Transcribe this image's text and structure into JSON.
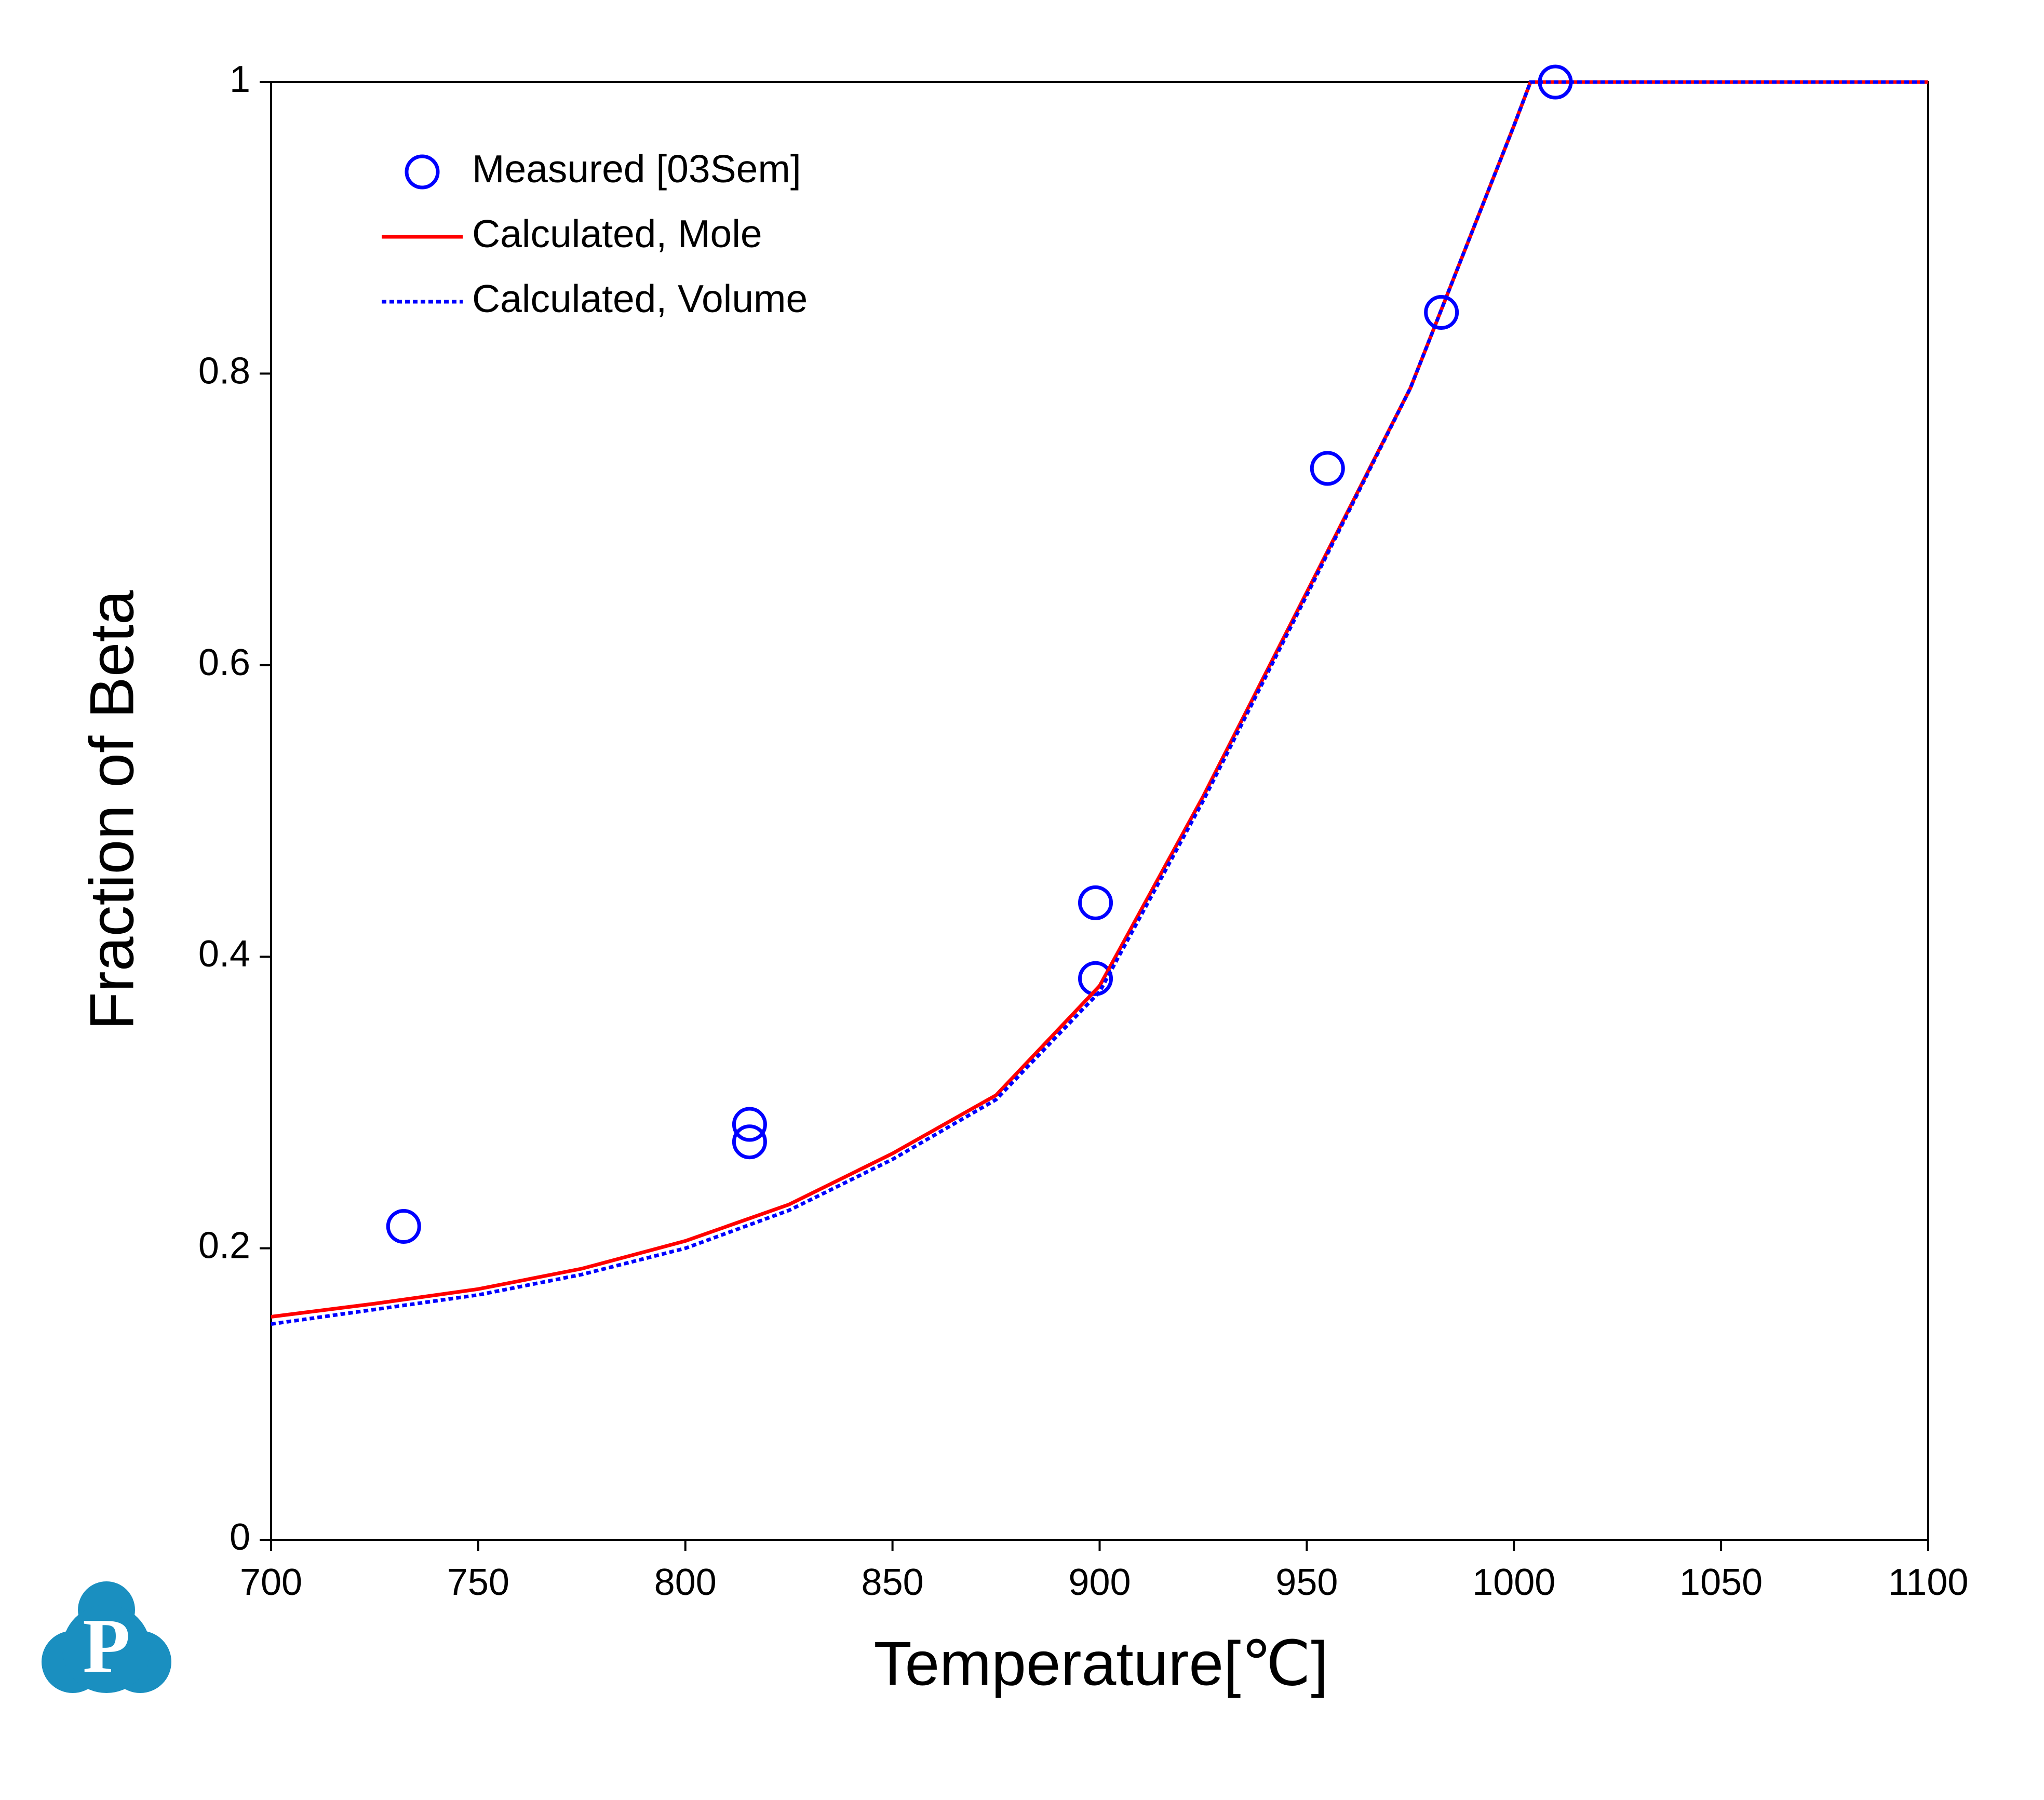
{
  "chart_data": {
    "type": "line",
    "xlabel": "Temperature[℃]",
    "ylabel": "Fraction of Beta",
    "xlim": [
      700,
      1100
    ],
    "xticks": [
      700,
      750,
      800,
      850,
      900,
      950,
      1000,
      1050,
      1100
    ],
    "ylim": [
      0,
      1
    ],
    "yticks": [
      0,
      0.2,
      0.4,
      0.6,
      0.8,
      1
    ],
    "legend": "upper-left",
    "series": [
      {
        "name": "Measured [03Sem]",
        "type": "scatter",
        "color": "#0000ff",
        "x": [
          732,
          815.5,
          815.5,
          899,
          899,
          955,
          982.5,
          1010
        ],
        "values": [
          0.215,
          0.285,
          0.273,
          0.437,
          0.385,
          0.735,
          0.842,
          1.0
        ]
      },
      {
        "name": "Calculated, Mole",
        "type": "line",
        "color": "#ff0000",
        "dash": "solid",
        "x": [
          700,
          725,
          750,
          775,
          800,
          825,
          850,
          875,
          900,
          925,
          950,
          975,
          1000,
          1004,
          1100
        ],
        "values": [
          0.153,
          0.162,
          0.172,
          0.186,
          0.205,
          0.23,
          0.265,
          0.305,
          0.38,
          0.51,
          0.65,
          0.79,
          0.97,
          1.0,
          1.0
        ]
      },
      {
        "name": "Calculated, Volume",
        "type": "line",
        "color": "#0000ff",
        "dash": "dotted",
        "x": [
          700,
          725,
          750,
          775,
          800,
          825,
          850,
          875,
          900,
          925,
          950,
          975,
          1000,
          1004,
          1100
        ],
        "values": [
          0.148,
          0.158,
          0.168,
          0.182,
          0.2,
          0.226,
          0.261,
          0.302,
          0.376,
          0.507,
          0.648,
          0.79,
          0.97,
          1.0,
          1.0
        ]
      }
    ]
  },
  "logo_text": "P"
}
